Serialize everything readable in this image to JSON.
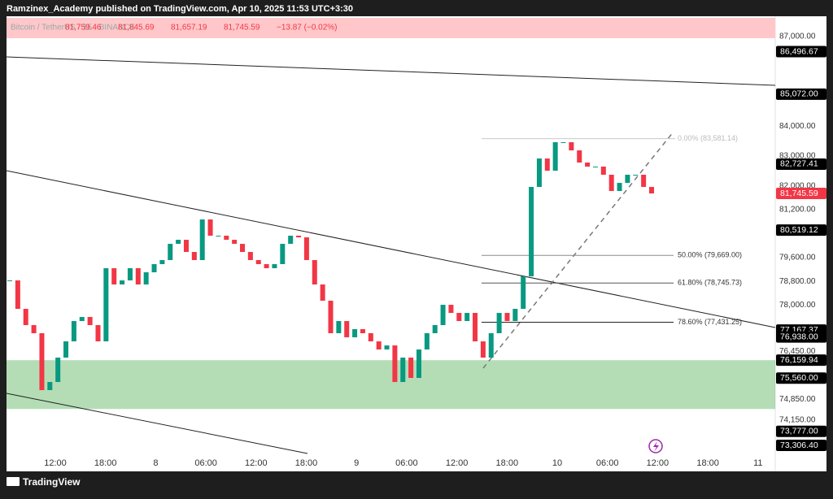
{
  "header": {
    "text": "Ramzinex_Academy published on TradingView.com, Apr 10, 2025 11:53 UTC+3:30"
  },
  "chart_data": {
    "type": "candlestick",
    "symbol": "Bitcoin / TetherUS · 15 · BINANCE",
    "legend": [
      "81,759.46",
      "81,845.69",
      "81,657.19",
      "81,745.59",
      "−13.87 (−0.02%)"
    ],
    "x_labels": [
      "12:00",
      "18:00",
      "8",
      "06:00",
      "12:00",
      "18:00",
      "9",
      "06:00",
      "12:00",
      "18:00",
      "10",
      "06:00",
      "12:00",
      "18:00",
      "11"
    ],
    "ylim": [
      72435,
      87681
    ],
    "yticks": [
      {
        "value": 87000,
        "label": "87,000.00"
      },
      {
        "value": 84000,
        "label": "84,000.00"
      },
      {
        "value": 83000,
        "label": "83,000.00"
      },
      {
        "value": 82000,
        "label": "82,000.00"
      },
      {
        "value": 81200,
        "label": "81,200.00"
      },
      {
        "value": 79600,
        "label": "79,600.00"
      },
      {
        "value": 78800,
        "label": "78,800.00"
      },
      {
        "value": 78000,
        "label": "78,000.00"
      },
      {
        "value": 76450,
        "label": "76,450.00"
      },
      {
        "value": 74850,
        "label": "74,850.00"
      },
      {
        "value": 74150,
        "label": "74,150.00"
      }
    ],
    "closes": [
      78832,
      77879,
      77335,
      77063,
      75157,
      75429,
      76246,
      76790,
      77471,
      77607,
      77335,
      76790,
      79241,
      78696,
      78832,
      79241,
      78696,
      79104,
      79377,
      79513,
      80057,
      80193,
      79785,
      79513,
      80874,
      80330,
      80330,
      80193,
      80057,
      79785,
      79513,
      79377,
      79241,
      79377,
      80057,
      80330,
      80275,
      79513,
      78696,
      78152,
      77063,
      77471,
      76926,
      77199,
      77063,
      76790,
      76518,
      76654,
      75429,
      76246,
      75565,
      76518,
      77063,
      77335,
      78015,
      77743,
      77471,
      77743,
      76790,
      76246,
      77063,
      77743,
      77471,
      77879,
      78968,
      81963,
      82916,
      82508,
      83461,
      83461,
      83188,
      82780,
      82644,
      82644,
      82372,
      81827,
      82099,
      82372,
      82372,
      81963,
      81745.59
    ],
    "up_color": "#089981",
    "down_color": "#f23645",
    "zone": [
      74525,
      76159.94
    ],
    "zone_color": "rgba(76,175,80,0.42)",
    "fib_levels": [
      {
        "value": 83581.14,
        "label": "0.00% (83,581.14)",
        "color": "#c8c8c8"
      },
      {
        "value": 79669,
        "label": "50.00% (79,669.00)",
        "color": "#8a8a8a"
      },
      {
        "value": 78745.73,
        "label": "61.80% (78,745.73)",
        "color": "#555555"
      },
      {
        "value": 77431.25,
        "label": "78.60% (77,431.25)",
        "color": "#222222"
      }
    ],
    "price_labels": [
      {
        "value": 86496.67,
        "label": "86,496.67",
        "color": "#000000"
      },
      {
        "value": 85072,
        "label": "85,072.00",
        "color": "#000000"
      },
      {
        "value": 82727.41,
        "label": "82,727.41",
        "color": "#000000"
      },
      {
        "value": 81745.59,
        "label": "81,745.59",
        "color": "#f23645"
      },
      {
        "value": 80519.12,
        "label": "80,519.12",
        "color": "#000000"
      },
      {
        "value": 77167.37,
        "label": "77,167.37",
        "color": "#000000"
      },
      {
        "value": 76938,
        "label": "76,938.00",
        "color": "#000000"
      },
      {
        "value": 76159.94,
        "label": "76,159.94",
        "color": "#000000"
      },
      {
        "value": 75560,
        "label": "75,560.00",
        "color": "#000000"
      },
      {
        "value": 73777,
        "label": "73,777.00",
        "color": "#000000"
      },
      {
        "value": 73306.4,
        "label": "73,306.40",
        "color": "#000000"
      }
    ]
  },
  "footer": {
    "brand": "TradingView"
  }
}
